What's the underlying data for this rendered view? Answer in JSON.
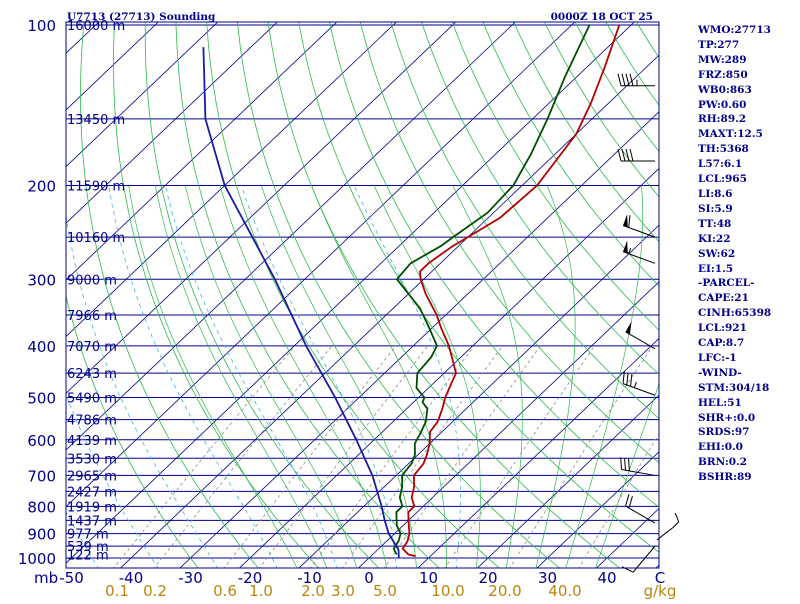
{
  "header": {
    "station": "U7713 (27713) Sounding",
    "time": "0000Z 18 OCT 25"
  },
  "colors": {
    "background": "#ffffff",
    "frame": "#00008b",
    "isobar": "#00008b",
    "isotherm_skew": "#00008b",
    "dry_adiabat": "#2db84a",
    "moist_adiabat": "#2db84a",
    "mixing_ratio": "#8a8a8a",
    "dewpoint_axis_text": "#b8860b",
    "temperature": "#b30000",
    "dewpoint": "#004d00",
    "parcel": "#1a1aa6",
    "wet_bulb": "#3cb4e6",
    "wind_barb": "#000000",
    "text": "#00008b"
  },
  "stats_panel": [
    "WMO:27713",
    "TP:277",
    "MW:289",
    "FRZ:850",
    "WB0:863",
    "PW:0.60",
    "RH:89.2",
    "MAXT:12.5",
    "TH:5368",
    "L57:6.1",
    "LCL:965",
    "LI:8.6",
    "SI:5.9",
    "TT:48",
    "KI:22",
    "SW:62",
    "EI:1.5",
    "-PARCEL-",
    "CAPE:21",
    "CINH:65398",
    "LCL:921",
    "CAP:8.7",
    "LFC:-1",
    "-WIND-",
    "STM:304/18",
    "HEL:51",
    "SHR+:0.0",
    "SRDS:97",
    "EHI:0.0",
    "BRN:0.2",
    "BSHR:89"
  ],
  "chart_data": {
    "type": "skew-t log-p",
    "title": "U7713 (27713) Sounding",
    "valid_time": "0000Z 18 OCT 25",
    "y_axis": {
      "label": "mb",
      "scale": "log",
      "range": [
        1000,
        100
      ],
      "ticks": [
        100,
        200,
        300,
        400,
        500,
        600,
        700,
        800,
        900,
        1000
      ]
    },
    "x_axis": {
      "label": "C",
      "range": [
        -50,
        50
      ],
      "ticks": [
        -50,
        -40,
        -30,
        -20,
        -10,
        0,
        10,
        20,
        30,
        40
      ],
      "tick_labels": [
        "-50",
        "-40",
        "-30",
        "-20",
        "-10",
        "0",
        "10",
        "20",
        "30",
        "40"
      ]
    },
    "mixing_ratio_axis": {
      "label": "g/kg",
      "values": [
        0.1,
        0.2,
        0.6,
        1.0,
        2.0,
        3.0,
        5.0,
        10.0,
        20.0,
        40.0
      ],
      "labels": [
        "0.1",
        "0.2",
        "0.6",
        "1.0",
        "2.0",
        "3.0",
        "5.0",
        "10.0",
        "20.0",
        "40.0"
      ]
    },
    "height_labels": [
      {
        "p": 100,
        "text": "16000 m"
      },
      {
        "p": 150,
        "text": "13450 m"
      },
      {
        "p": 200,
        "text": "11590 m"
      },
      {
        "p": 250,
        "text": "10160 m"
      },
      {
        "p": 300,
        "text": "9000 m"
      },
      {
        "p": 350,
        "text": "7966 m"
      },
      {
        "p": 400,
        "text": "7070 m"
      },
      {
        "p": 450,
        "text": "6243 m"
      },
      {
        "p": 500,
        "text": "5490 m"
      },
      {
        "p": 550,
        "text": "4786 m"
      },
      {
        "p": 600,
        "text": "4139 m"
      },
      {
        "p": 650,
        "text": "3530 m"
      },
      {
        "p": 700,
        "text": "2965 m"
      },
      {
        "p": 750,
        "text": "2427 m"
      },
      {
        "p": 800,
        "text": "1919 m"
      },
      {
        "p": 850,
        "text": "1437 m"
      },
      {
        "p": 900,
        "text": "977 m"
      },
      {
        "p": 950,
        "text": "539 m"
      },
      {
        "p": 985,
        "text": "122 m"
      }
    ],
    "series": [
      {
        "name": "temperature",
        "points": [
          [
            992,
            7.5
          ],
          [
            985,
            6.0
          ],
          [
            960,
            4.0
          ],
          [
            930,
            3.5
          ],
          [
            900,
            2.5
          ],
          [
            870,
            1.0
          ],
          [
            850,
            0.0
          ],
          [
            820,
            -1.5
          ],
          [
            800,
            -1.5
          ],
          [
            770,
            -3.5
          ],
          [
            735,
            -5.0
          ],
          [
            700,
            -7.0
          ],
          [
            665,
            -7.5
          ],
          [
            640,
            -8.5
          ],
          [
            610,
            -10.0
          ],
          [
            580,
            -12.0
          ],
          [
            555,
            -12.5
          ],
          [
            525,
            -14.0
          ],
          [
            500,
            -15.5
          ],
          [
            470,
            -17.0
          ],
          [
            450,
            -18.0
          ],
          [
            420,
            -21.5
          ],
          [
            400,
            -24.0
          ],
          [
            370,
            -28.5
          ],
          [
            350,
            -31.5
          ],
          [
            320,
            -37.0
          ],
          [
            300,
            -40.5
          ],
          [
            290,
            -42.0
          ],
          [
            280,
            -42.0
          ],
          [
            260,
            -41.0
          ],
          [
            250,
            -40.0
          ],
          [
            230,
            -38.0
          ],
          [
            200,
            -37.5
          ],
          [
            175,
            -39.0
          ],
          [
            160,
            -40.0
          ],
          [
            140,
            -43.0
          ],
          [
            120,
            -47.0
          ],
          [
            100,
            -52.0
          ]
        ]
      },
      {
        "name": "dewpoint",
        "points": [
          [
            985,
            4.0
          ],
          [
            960,
            2.5
          ],
          [
            930,
            2.0
          ],
          [
            900,
            1.0
          ],
          [
            870,
            -1.0
          ],
          [
            850,
            -2.0
          ],
          [
            820,
            -3.5
          ],
          [
            800,
            -3.5
          ],
          [
            770,
            -5.5
          ],
          [
            735,
            -7.0
          ],
          [
            700,
            -9.0
          ],
          [
            665,
            -9.5
          ],
          [
            640,
            -10.5
          ],
          [
            610,
            -12.5
          ],
          [
            580,
            -13.5
          ],
          [
            555,
            -14.5
          ],
          [
            525,
            -16.5
          ],
          [
            510,
            -18.5
          ],
          [
            500,
            -19.0
          ],
          [
            480,
            -22.0
          ],
          [
            450,
            -24.5
          ],
          [
            420,
            -25.0
          ],
          [
            400,
            -26.0
          ],
          [
            370,
            -30.5
          ],
          [
            340,
            -35.5
          ],
          [
            300,
            -44.5
          ],
          [
            280,
            -45.0
          ],
          [
            260,
            -43.0
          ],
          [
            250,
            -42.5
          ],
          [
            225,
            -41.0
          ],
          [
            200,
            -41.5
          ],
          [
            175,
            -44.0
          ],
          [
            150,
            -47.5
          ],
          [
            125,
            -52.0
          ],
          [
            100,
            -57.0
          ]
        ]
      },
      {
        "name": "parcel",
        "points": [
          [
            1000,
            5.0
          ],
          [
            965,
            3.5
          ],
          [
            921,
            0.5
          ],
          [
            900,
            -1.0
          ],
          [
            850,
            -4.0
          ],
          [
            800,
            -7.0
          ],
          [
            700,
            -14.0
          ],
          [
            600,
            -23.0
          ],
          [
            500,
            -34.0
          ],
          [
            400,
            -48.0
          ],
          [
            300,
            -65.0
          ],
          [
            200,
            -90.0
          ],
          [
            150,
            -105.0
          ],
          [
            110,
            -118.0
          ]
        ]
      }
    ],
    "wind_barbs": [
      {
        "p": 130,
        "dir": 270,
        "speed": 45
      },
      {
        "p": 180,
        "dir": 270,
        "speed": 40
      },
      {
        "p": 250,
        "dir": 290,
        "speed": 60
      },
      {
        "p": 280,
        "dir": 290,
        "speed": 55
      },
      {
        "p": 405,
        "dir": 300,
        "speed": 50
      },
      {
        "p": 495,
        "dir": 290,
        "speed": 35
      },
      {
        "p": 700,
        "dir": 280,
        "speed": 30
      },
      {
        "p": 860,
        "dir": 300,
        "speed": 20
      },
      {
        "p": 950,
        "dir": 220,
        "speed": 10
      }
    ],
    "hodograph": [
      [
        0,
        0
      ],
      [
        10,
        8
      ],
      [
        18,
        14
      ],
      [
        24,
        20
      ],
      [
        22,
        26
      ],
      [
        20,
        30
      ]
    ]
  }
}
